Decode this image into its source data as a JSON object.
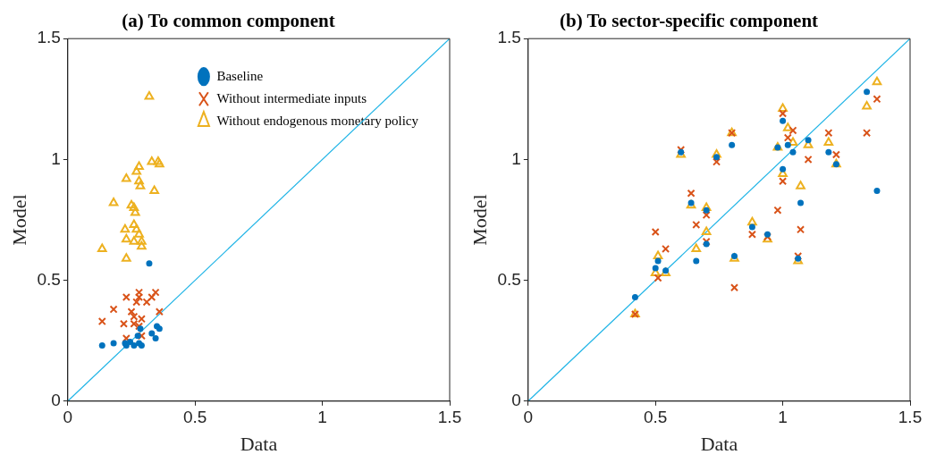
{
  "chart_data": [
    {
      "type": "scatter",
      "title": "(a) To common component",
      "xlabel": "Data",
      "ylabel": "Model",
      "xlim": [
        0,
        1.5
      ],
      "ylim": [
        0,
        1.5
      ],
      "xticks": [
        0,
        0.5,
        1,
        1.5
      ],
      "yticks": [
        0,
        0.5,
        1,
        1.5
      ],
      "grid": false,
      "legend": "top right",
      "series": [
        {
          "name": "Baseline",
          "color": "#0072bd",
          "marker": "circle",
          "x": [
            0.32,
            0.135,
            0.18,
            0.23,
            0.26,
            0.29,
            0.245,
            0.275,
            0.285,
            0.35,
            0.36,
            0.33,
            0.345,
            0.225,
            0.28
          ],
          "values": [
            0.57,
            0.23,
            0.24,
            0.23,
            0.23,
            0.23,
            0.245,
            0.27,
            0.3,
            0.31,
            0.3,
            0.28,
            0.26,
            0.24,
            0.24
          ]
        },
        {
          "name": "Without intermediate inputs",
          "color": "#d95319",
          "marker": "cross",
          "x": [
            0.135,
            0.18,
            0.23,
            0.28,
            0.28,
            0.27,
            0.345,
            0.33,
            0.31,
            0.36,
            0.25,
            0.26,
            0.29,
            0.22,
            0.26,
            0.28,
            0.23,
            0.29
          ],
          "values": [
            0.33,
            0.38,
            0.43,
            0.45,
            0.43,
            0.41,
            0.45,
            0.43,
            0.41,
            0.37,
            0.37,
            0.35,
            0.34,
            0.32,
            0.32,
            0.31,
            0.26,
            0.27
          ]
        },
        {
          "name": "Without endogenous monetary policy",
          "color": "#edb120",
          "marker": "triangle",
          "x": [
            0.32,
            0.33,
            0.355,
            0.36,
            0.28,
            0.27,
            0.23,
            0.28,
            0.285,
            0.34,
            0.18,
            0.25,
            0.26,
            0.265,
            0.26,
            0.225,
            0.27,
            0.28,
            0.23,
            0.26,
            0.29,
            0.29,
            0.135,
            0.23
          ],
          "values": [
            1.26,
            0.99,
            0.99,
            0.98,
            0.97,
            0.95,
            0.92,
            0.91,
            0.89,
            0.87,
            0.82,
            0.81,
            0.8,
            0.78,
            0.73,
            0.71,
            0.71,
            0.69,
            0.67,
            0.66,
            0.66,
            0.64,
            0.63,
            0.59
          ]
        },
        {
          "type": "line",
          "color": "#1fb4e6",
          "marker": "none",
          "x": [
            0,
            1.5
          ],
          "values": [
            0,
            1.5
          ]
        }
      ]
    },
    {
      "type": "scatter",
      "title": "(b) To sector-specific component",
      "xlabel": "Data",
      "ylabel": "Model",
      "xlim": [
        0,
        1.5
      ],
      "ylim": [
        0,
        1.5
      ],
      "xticks": [
        0,
        0.5,
        1,
        1.5
      ],
      "yticks": [
        0,
        0.5,
        1,
        1.5
      ],
      "grid": false,
      "legend": false,
      "series": [
        {
          "color": "#0072bd",
          "marker": "circle",
          "x": [
            0.42,
            0.5,
            0.51,
            0.54,
            0.6,
            0.64,
            0.66,
            0.7,
            0.7,
            0.74,
            0.8,
            0.81,
            0.88,
            0.94,
            0.98,
            1.0,
            1.0,
            1.02,
            1.04,
            1.06,
            1.07,
            1.1,
            1.18,
            1.21,
            1.33,
            1.37
          ],
          "values": [
            0.43,
            0.55,
            0.58,
            0.54,
            1.03,
            0.82,
            0.58,
            0.79,
            0.65,
            1.01,
            1.06,
            0.6,
            0.72,
            0.69,
            1.05,
            1.16,
            0.96,
            1.06,
            1.03,
            0.59,
            0.82,
            1.08,
            1.03,
            0.98,
            1.28,
            0.87
          ]
        },
        {
          "color": "#d95319",
          "marker": "cross",
          "x": [
            0.42,
            0.5,
            0.51,
            0.54,
            0.6,
            0.64,
            0.66,
            0.7,
            0.7,
            0.74,
            0.8,
            0.81,
            0.88,
            0.94,
            0.98,
            1.0,
            1.0,
            1.02,
            1.04,
            1.06,
            1.07,
            1.1,
            1.18,
            1.21,
            1.33,
            1.37
          ],
          "values": [
            0.36,
            0.7,
            0.51,
            0.63,
            1.04,
            0.86,
            0.73,
            0.77,
            0.66,
            0.99,
            1.11,
            0.47,
            0.69,
            0.68,
            0.79,
            1.19,
            0.91,
            1.09,
            1.12,
            0.6,
            0.71,
            1.0,
            1.11,
            1.02,
            1.11,
            1.25
          ]
        },
        {
          "color": "#edb120",
          "marker": "triangle",
          "x": [
            0.42,
            0.5,
            0.51,
            0.54,
            0.6,
            0.64,
            0.66,
            0.7,
            0.7,
            0.74,
            0.8,
            0.81,
            0.88,
            0.94,
            0.98,
            1.0,
            1.0,
            1.02,
            1.04,
            1.06,
            1.07,
            1.1,
            1.18,
            1.21,
            1.33,
            1.37
          ],
          "values": [
            0.36,
            0.53,
            0.6,
            0.53,
            1.02,
            0.81,
            0.63,
            0.8,
            0.7,
            1.02,
            1.11,
            0.59,
            0.74,
            0.67,
            1.05,
            1.21,
            0.94,
            1.13,
            1.07,
            0.58,
            0.89,
            1.06,
            1.07,
            0.98,
            1.22,
            1.32
          ]
        },
        {
          "type": "line",
          "color": "#1fb4e6",
          "marker": "none",
          "x": [
            0,
            1.5
          ],
          "values": [
            0,
            1.5
          ]
        }
      ]
    }
  ]
}
